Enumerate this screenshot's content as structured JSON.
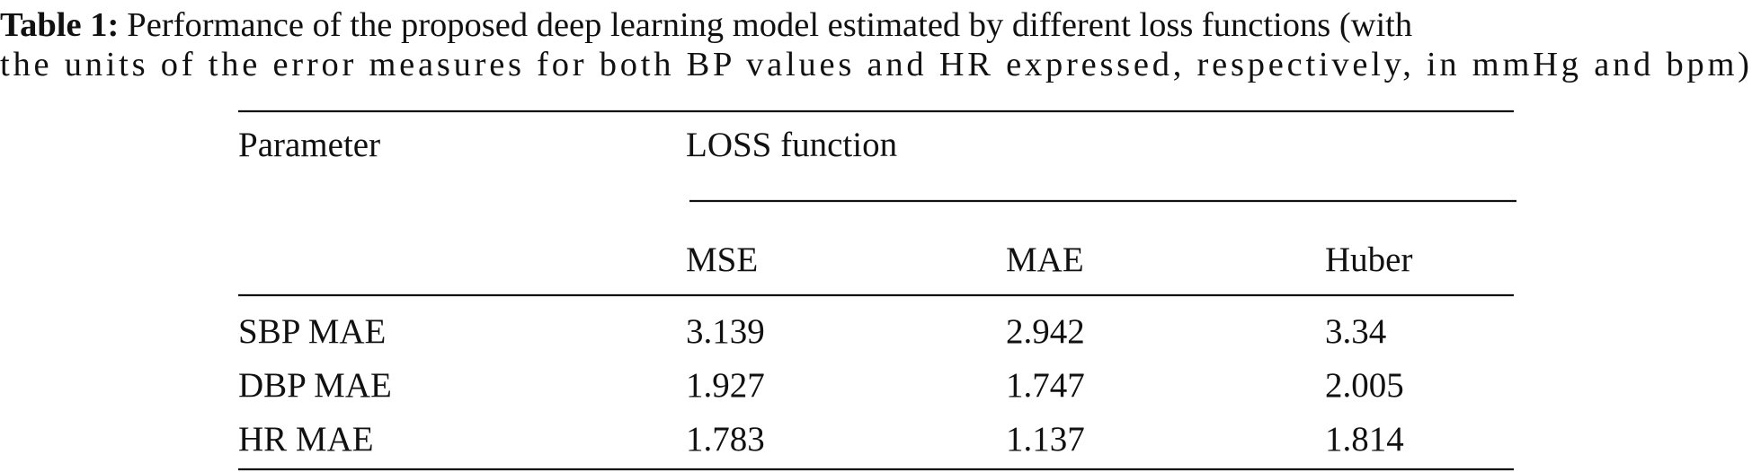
{
  "caption": {
    "label": "Table 1:",
    "line1": "Performance of the proposed deep learning model estimated by different loss functions (with",
    "line2": "the units of the error measures for both BP values and HR expressed, respectively, in mmHg and bpm)"
  },
  "table": {
    "header": {
      "parameter": "Parameter",
      "group": "LOSS function",
      "columns": [
        "MSE",
        "MAE",
        "Huber"
      ]
    },
    "rows": [
      [
        "SBP MAE",
        "3.139",
        "2.942",
        "3.34"
      ],
      [
        "DBP MAE",
        "1.927",
        "1.747",
        "2.005"
      ],
      [
        "HR MAE",
        "1.783",
        "1.137",
        "1.814"
      ]
    ]
  }
}
